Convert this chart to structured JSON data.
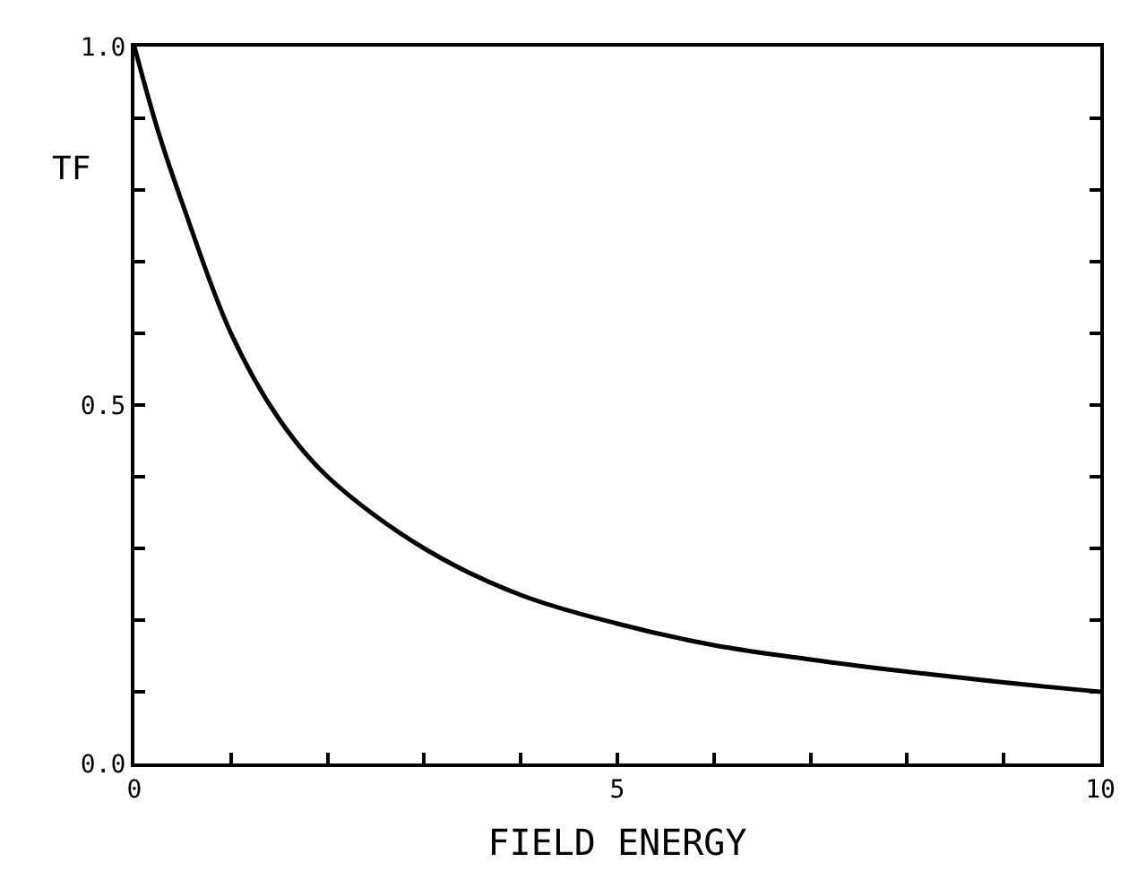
{
  "chart_data": {
    "type": "line",
    "xlabel": "FIELD ENERGY",
    "ylabel": "TF",
    "x": [
      0,
      0.25,
      0.5,
      1,
      1.5,
      2,
      3,
      4,
      5,
      6,
      7,
      8,
      9,
      10
    ],
    "series": [
      {
        "color": "#000000",
        "values": [
          1.0,
          0.88,
          0.78,
          0.6,
          0.48,
          0.4,
          0.3,
          0.235,
          0.195,
          0.165,
          0.145,
          0.128,
          0.113,
          0.1
        ]
      }
    ],
    "xlim": [
      0,
      10
    ],
    "ylim": [
      0,
      1
    ],
    "xticks": [
      0,
      {
        "value": 1,
        "label": null
      },
      {
        "value": 2,
        "label": null
      },
      {
        "value": 3,
        "label": null
      },
      {
        "value": 4,
        "label": null
      },
      5,
      {
        "value": 6,
        "label": null
      },
      {
        "value": 7,
        "label": null
      },
      {
        "value": 8,
        "label": null
      },
      {
        "value": 9,
        "label": null
      },
      10
    ],
    "yticks": [
      {
        "value": 0,
        "label": "0.0"
      },
      {
        "value": 0.1,
        "label": null
      },
      {
        "value": 0.2,
        "label": null
      },
      {
        "value": 0.3,
        "label": null
      },
      {
        "value": 0.4,
        "label": null
      },
      0.5,
      {
        "value": 0.6,
        "label": null
      },
      {
        "value": 0.7,
        "label": null
      },
      {
        "value": 0.8,
        "label": null
      },
      {
        "value": 0.9,
        "label": null
      },
      {
        "value": 1,
        "label": "1.0"
      }
    ],
    "legend": false,
    "marker": "none",
    "line_style": "solid"
  }
}
